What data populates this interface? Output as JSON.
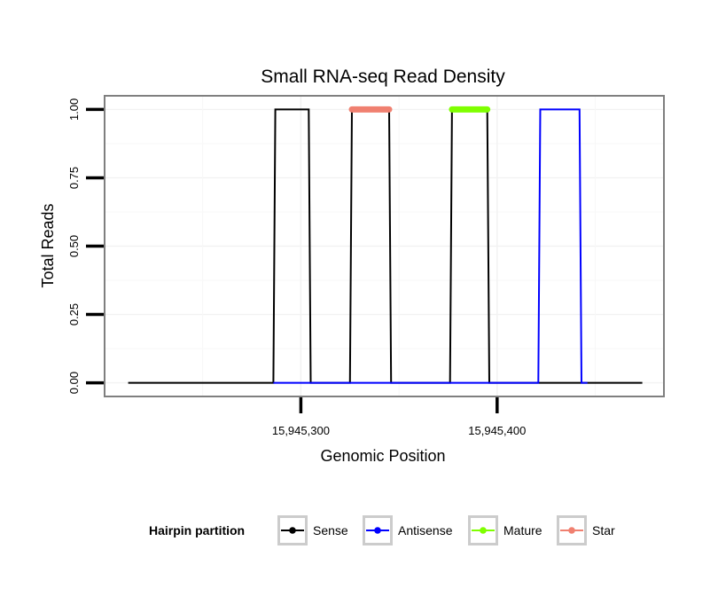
{
  "chart_data": {
    "type": "line",
    "title": "Small RNA-seq Read Density",
    "xlabel": "Genomic Position",
    "ylabel": "Total Reads",
    "xlim": [
      15945200,
      15945485
    ],
    "ylim": [
      -0.05,
      1.05
    ],
    "x_ticks": [
      {
        "value": 15945300,
        "label": "15,945,300"
      },
      {
        "value": 15945400,
        "label": "15,945,400"
      }
    ],
    "y_ticks": [
      {
        "value": 0,
        "label": "0.00"
      },
      {
        "value": 0.25,
        "label": "0.25"
      },
      {
        "value": 0.5,
        "label": "0.50"
      },
      {
        "value": 0.75,
        "label": "0.75"
      },
      {
        "value": 1,
        "label": "1.00"
      }
    ],
    "grid": true,
    "legend": {
      "title": "Hairpin partition",
      "position": "bottom",
      "entries": [
        {
          "name": "Sense",
          "color": "#000000"
        },
        {
          "name": "Antisense",
          "color": "#0000ff"
        },
        {
          "name": "Mature",
          "color": "#7fff00"
        },
        {
          "name": "Star",
          "color": "#f08070"
        }
      ]
    },
    "series": [
      {
        "name": "Sense",
        "color": "#000000",
        "x": [
          15945212,
          15945286,
          15945287,
          15945304,
          15945305,
          15945325,
          15945326,
          15945345,
          15945346,
          15945376,
          15945377,
          15945395,
          15945396,
          15945474
        ],
        "y": [
          0,
          0,
          1,
          1,
          0,
          0,
          1,
          1,
          0,
          0,
          1,
          1,
          0,
          0
        ]
      },
      {
        "name": "Antisense",
        "color": "#0000ff",
        "x": [
          15945286,
          15945421,
          15945422,
          15945442,
          15945443,
          15945446
        ],
        "y": [
          0,
          0,
          1,
          1,
          0,
          0
        ]
      },
      {
        "name": "Mature",
        "color": "#7fff00",
        "x": [
          15945377,
          15945395
        ],
        "y": [
          1,
          1
        ]
      },
      {
        "name": "Star",
        "color": "#f08070",
        "x": [
          15945326,
          15945345
        ],
        "y": [
          1,
          1
        ]
      }
    ]
  }
}
